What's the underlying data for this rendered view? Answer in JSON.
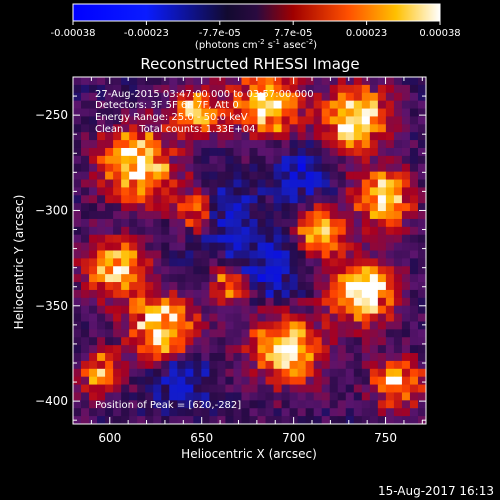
{
  "chart_data": {
    "type": "heatmap",
    "title": "Reconstructed RHESSI Image",
    "xlabel": "Heliocentric X (arcsec)",
    "ylabel": "Heliocentric Y (arcsec)",
    "xlim": [
      580,
      772
    ],
    "ylim": [
      -412,
      -230
    ],
    "xticks": [
      600,
      650,
      700,
      750
    ],
    "yticks": [
      -250,
      -300,
      -350,
      -400
    ],
    "colorbar": {
      "range": [
        -0.00038,
        0.00038
      ],
      "tick_labels": [
        "-0.00038",
        "-0.00023",
        "-7.7e-05",
        "7.7e-05",
        "0.00023",
        "0.00038"
      ],
      "unit_prefix": "(photons cm",
      "unit_exp1": "-2",
      "unit_mid": " s",
      "unit_exp2": "-1",
      "unit_mid2": " asec",
      "unit_exp3": "-2",
      "unit_suffix": ")"
    },
    "annotations": [
      "27-Aug-2015 03:47:00.000 to 03:57:00.000",
      "Detectors: 3F 5F 6F 7F, Att 0",
      "Energy Range: 25.0 - 50.0 keV",
      "Clean     Total counts: 1.33E+04"
    ],
    "peak_label": "Position of Peak = [620,-282]",
    "peak": [
      620,
      -282
    ],
    "grid": false
  },
  "footer": {
    "timestamp": "15-Aug-2017 16:13"
  },
  "colors": {
    "background": "#000000",
    "colormap_low": "#0000ff",
    "colormap_mid": "#1a0a2a",
    "colormap_high": "#ffffff"
  }
}
